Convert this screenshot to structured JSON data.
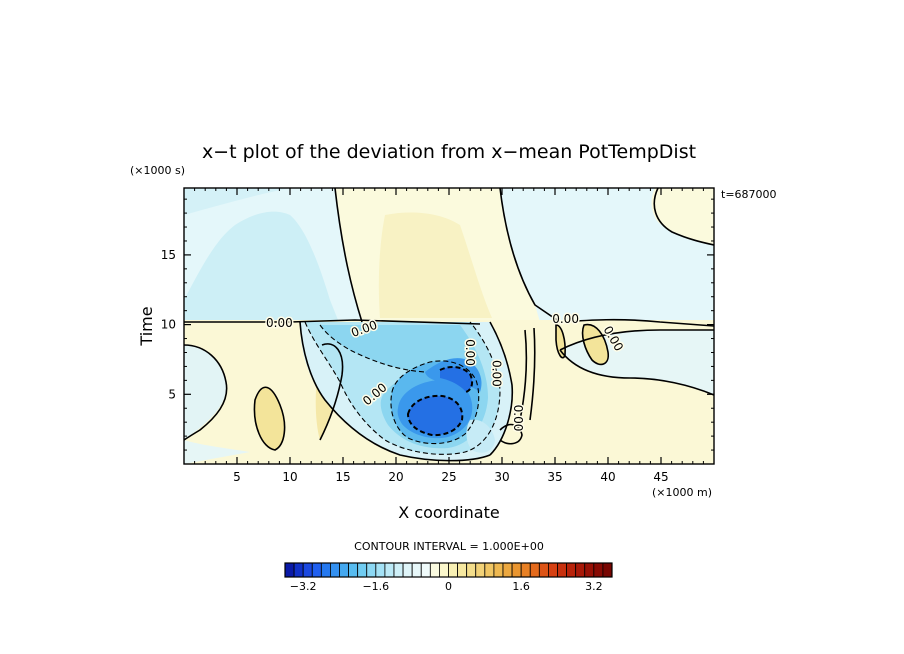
{
  "chart_data": {
    "type": "heatmap",
    "title": "x−t plot of the deviation from x−mean PotTempDist",
    "xlabel": "X coordinate",
    "ylabel": "Time",
    "x_unit": "(×1000 m)",
    "y_unit": "(×1000 s)",
    "time_stamp": "t=687000",
    "xlim": [
      0,
      50
    ],
    "ylim": [
      0,
      19.8
    ],
    "x_ticks": [
      5,
      10,
      15,
      20,
      25,
      30,
      35,
      40,
      45
    ],
    "y_ticks": [
      5,
      10,
      15
    ],
    "contour_interval_text": "CONTOUR INTERVAL = 1.000E+00",
    "contour_labels": [
      {
        "text": "0.00",
        "x": 9.0,
        "y": 10.1,
        "rotate": 0
      },
      {
        "text": "0.00",
        "x": 17.0,
        "y": 9.7,
        "rotate": -20
      },
      {
        "text": "0.00",
        "x": 36.0,
        "y": 10.4,
        "rotate": 0
      },
      {
        "text": "0.00",
        "x": 18.0,
        "y": 5.0,
        "rotate": -40
      },
      {
        "text": "0.00",
        "x": 27.0,
        "y": 8.0,
        "rotate": 90
      },
      {
        "text": "0.00",
        "x": 29.5,
        "y": 6.5,
        "rotate": 90
      },
      {
        "text": "0.00",
        "x": 31.5,
        "y": 3.3,
        "rotate": 90
      },
      {
        "text": "0.00",
        "x": 40.5,
        "y": 9.0,
        "rotate": 60
      }
    ],
    "colorbar": {
      "levels": [
        -3.6,
        -3.4,
        -3.2,
        -3.0,
        -2.8,
        -2.6,
        -2.4,
        -2.2,
        -2.0,
        -1.8,
        -1.6,
        -1.4,
        -1.2,
        -1.0,
        -0.8,
        -0.6,
        -0.4,
        -0.2,
        0,
        0.2,
        0.4,
        0.6,
        0.8,
        1.0,
        1.2,
        1.4,
        1.6,
        1.8,
        2.0,
        2.2,
        2.4,
        2.6,
        2.8,
        3.0,
        3.2,
        3.4,
        3.6
      ],
      "tick_values": [
        -3.2,
        -1.6,
        0,
        1.6,
        3.2
      ],
      "tick_labels": [
        "−3.2",
        "−1.6",
        "0",
        "1.6",
        "3.2"
      ],
      "colors": [
        "#0a1aa8",
        "#1030c8",
        "#1a48e0",
        "#1f5ff0",
        "#2478f0",
        "#3390f0",
        "#44a8f0",
        "#58bcf0",
        "#70ccf2",
        "#8cd8f4",
        "#a4e2f6",
        "#bceaf7",
        "#cff0f8",
        "#dff5f9",
        "#e8f8fa",
        "#f0fbfb",
        "#fbfbe0",
        "#fbf7cc",
        "#f8f0b4",
        "#f6e8a0",
        "#f4de8c",
        "#f2d278",
        "#f0c664",
        "#eeb850",
        "#eca840",
        "#ea9630",
        "#e88024",
        "#e46a1c",
        "#de5416",
        "#d64012",
        "#c8300e",
        "#b8220a",
        "#a81808",
        "#981006",
        "#880a04",
        "#780602"
      ]
    }
  }
}
